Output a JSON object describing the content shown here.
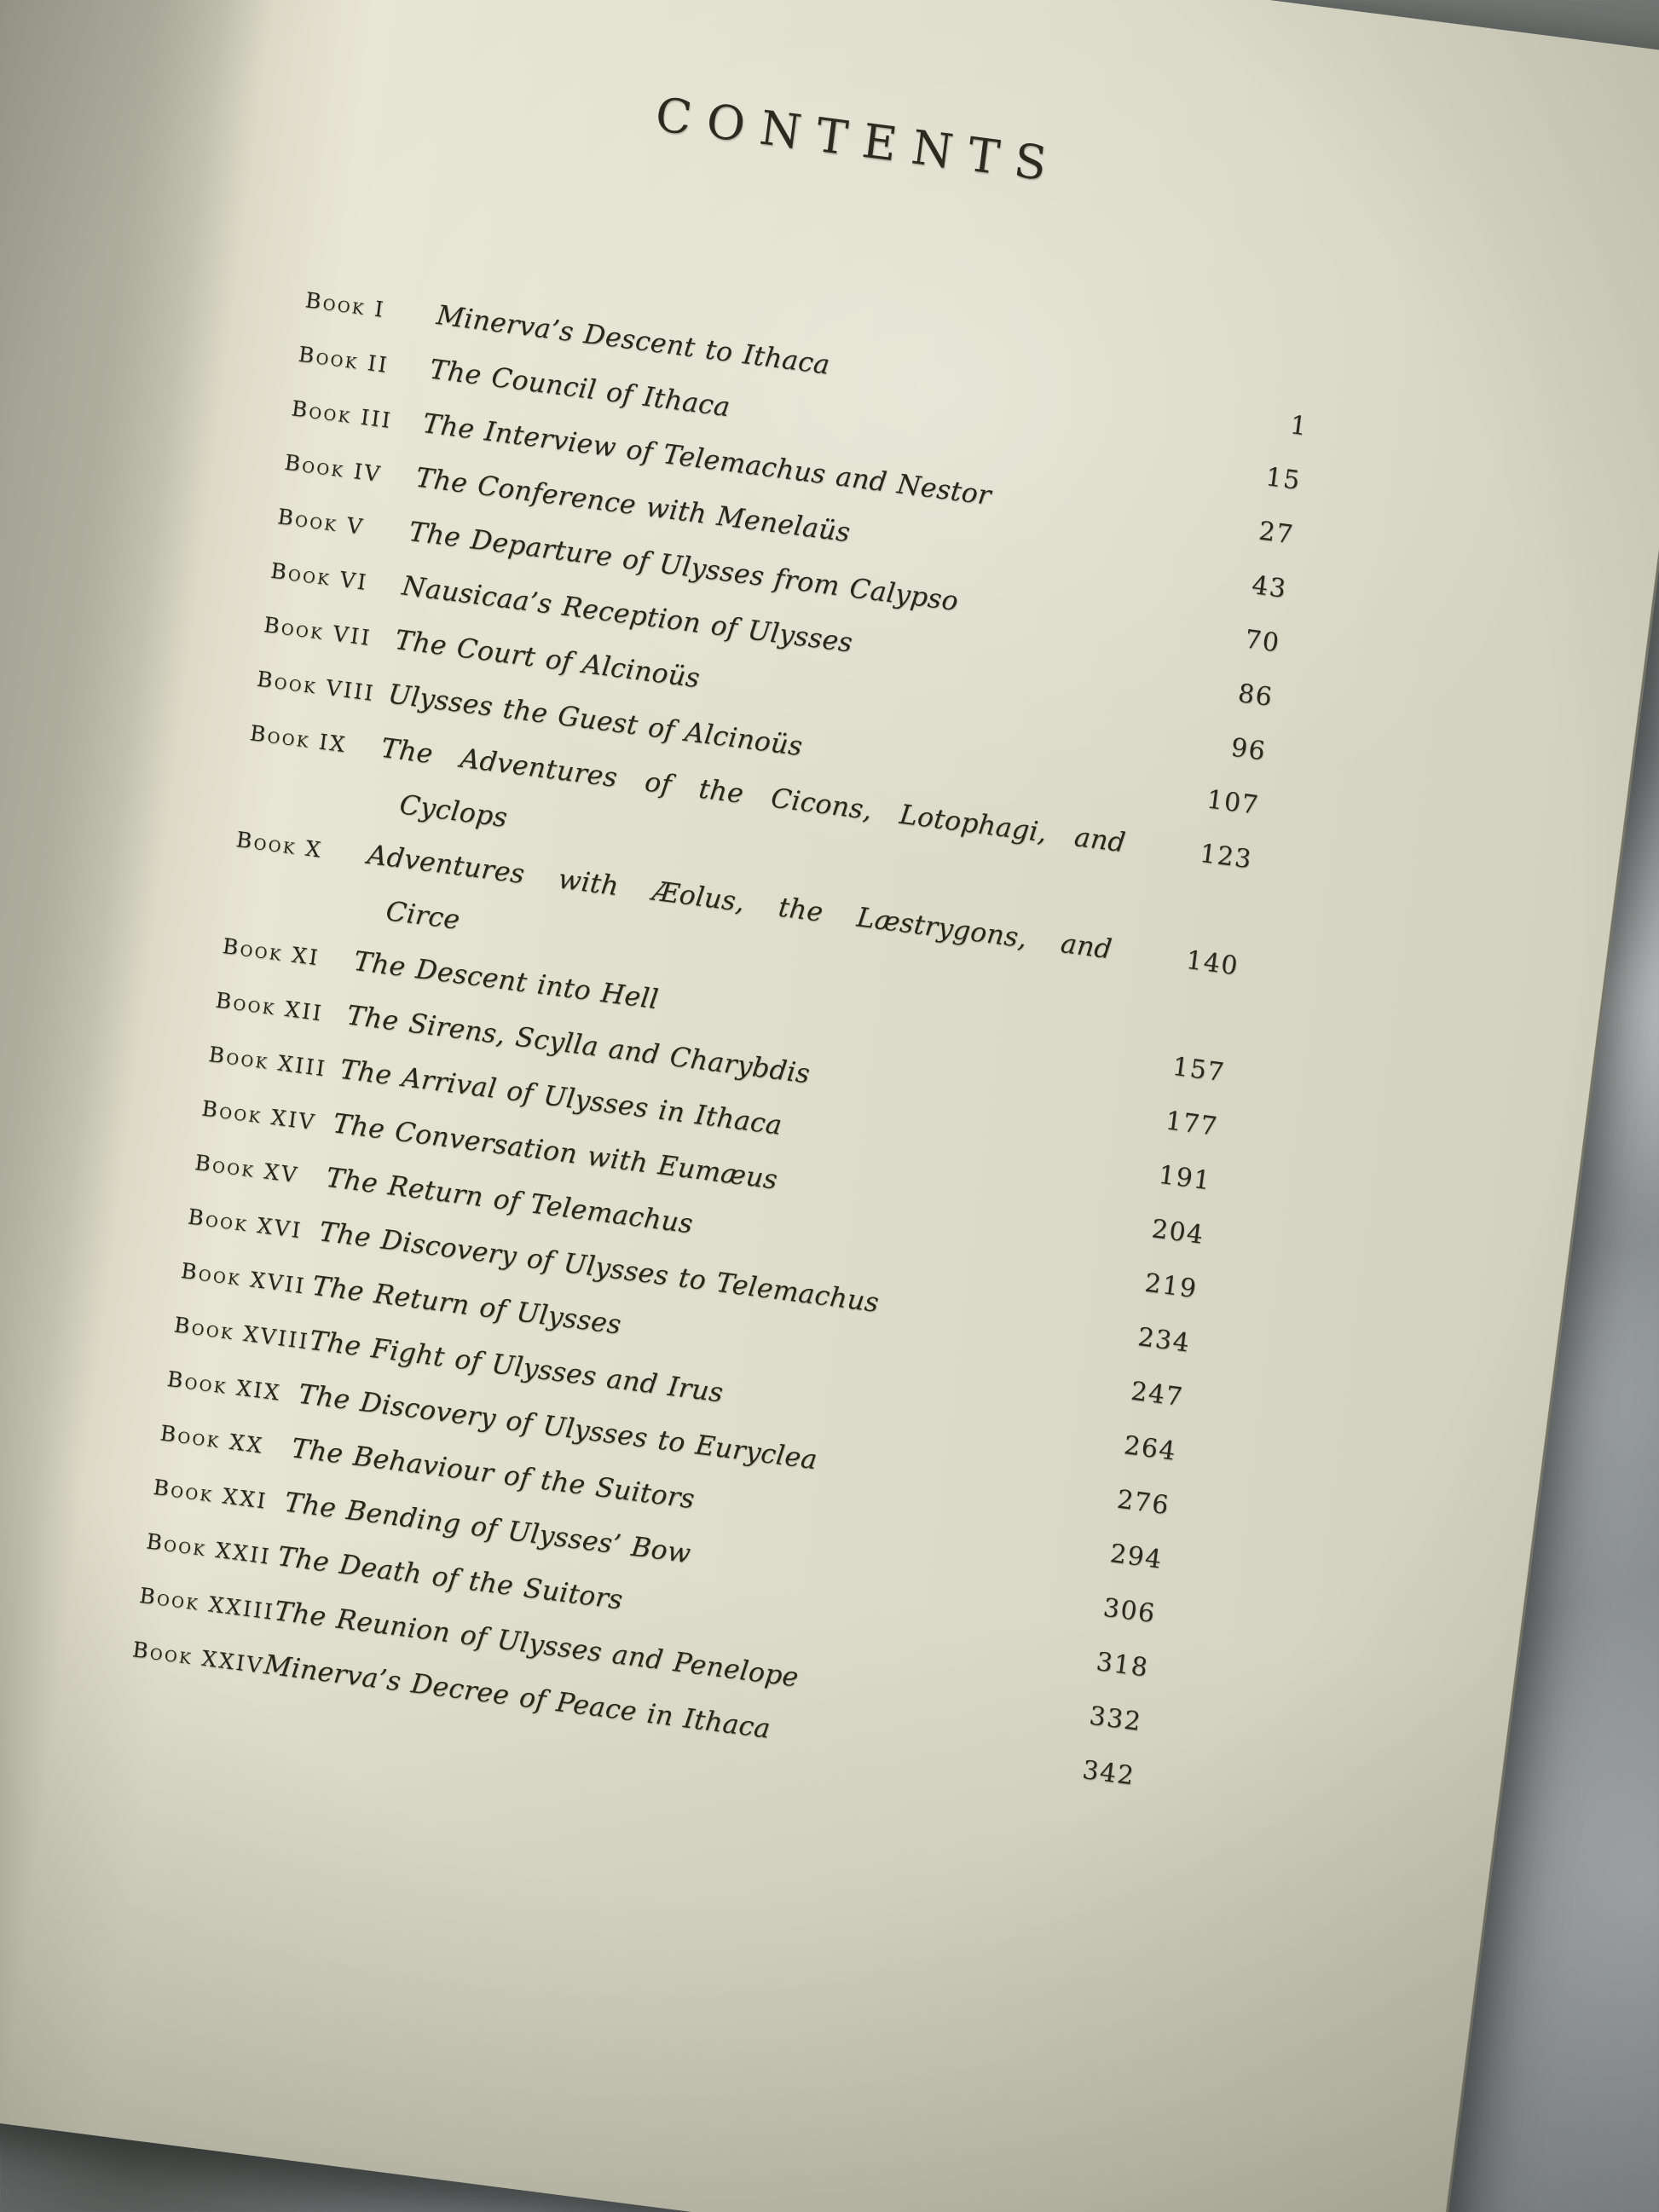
{
  "page": {
    "title": "CONTENTS",
    "colors": {
      "paper": "#e5e3d1",
      "paper_shadowed_left": "#a19f91",
      "ink": "#262519",
      "table_marble": "#8d9294",
      "page_edge_brown": "#6e614a"
    },
    "toc": {
      "entries": [
        {
          "label": "Book I",
          "title_lines": [
            "Minerva’s Descent to Ithaca"
          ],
          "page": "1"
        },
        {
          "label": "Book II",
          "title_lines": [
            "The Council of Ithaca"
          ],
          "page": "15"
        },
        {
          "label": "Book III",
          "title_lines": [
            "The Interview of Telemachus and Nestor"
          ],
          "page": "27"
        },
        {
          "label": "Book IV",
          "title_lines": [
            "The Conference with Menelaüs"
          ],
          "page": "43"
        },
        {
          "label": "Book V",
          "title_lines": [
            "The Departure of Ulysses from Calypso"
          ],
          "page": "70"
        },
        {
          "label": "Book VI",
          "title_lines": [
            "Nausicaa’s Reception of Ulysses"
          ],
          "page": "86"
        },
        {
          "label": "Book VII",
          "title_lines": [
            "The Court of Alcinoüs"
          ],
          "page": "96"
        },
        {
          "label": "Book VIII",
          "title_lines": [
            "Ulysses the Guest of Alcinoüs"
          ],
          "page": "107"
        },
        {
          "label": "Book IX",
          "title_lines": [
            "The Adventures of the Cicons, Lotophagi, and",
            "Cyclops"
          ],
          "page": "123"
        },
        {
          "label": "Book X",
          "title_lines": [
            "Adventures with Æolus, the Læstrygons, and",
            "Circe"
          ],
          "page": "140"
        },
        {
          "label": "Book XI",
          "title_lines": [
            "The Descent into Hell"
          ],
          "page": "157"
        },
        {
          "label": "Book XII",
          "title_lines": [
            "The Sirens, Scylla and Charybdis"
          ],
          "page": "177"
        },
        {
          "label": "Book XIII",
          "title_lines": [
            "The Arrival of Ulysses in Ithaca"
          ],
          "page": "191"
        },
        {
          "label": "Book XIV",
          "title_lines": [
            "The Conversation with Eumæus"
          ],
          "page": "204"
        },
        {
          "label": "Book XV",
          "title_lines": [
            "The Return of Telemachus"
          ],
          "page": "219"
        },
        {
          "label": "Book XVI",
          "title_lines": [
            "The Discovery of Ulysses to Telemachus"
          ],
          "page": "234"
        },
        {
          "label": "Book XVII",
          "title_lines": [
            "The Return of Ulysses"
          ],
          "page": "247"
        },
        {
          "label": "Book XVIII",
          "title_lines": [
            "The Fight of Ulysses and Irus"
          ],
          "page": "264"
        },
        {
          "label": "Book XIX",
          "title_lines": [
            "The Discovery of Ulysses to Euryclea"
          ],
          "page": "276"
        },
        {
          "label": "Book XX",
          "title_lines": [
            "The Behaviour of the Suitors"
          ],
          "page": "294"
        },
        {
          "label": "Book XXI",
          "title_lines": [
            "The Bending of Ulysses’ Bow"
          ],
          "page": "306"
        },
        {
          "label": "Book XXII",
          "title_lines": [
            "The Death of the Suitors"
          ],
          "page": "318"
        },
        {
          "label": "Book XXIII",
          "title_lines": [
            "The Reunion of Ulysses and Penelope"
          ],
          "page": "332"
        },
        {
          "label": "Book XXIV",
          "title_lines": [
            "Minerva’s Decree of Peace in Ithaca"
          ],
          "page": "342"
        }
      ]
    }
  }
}
